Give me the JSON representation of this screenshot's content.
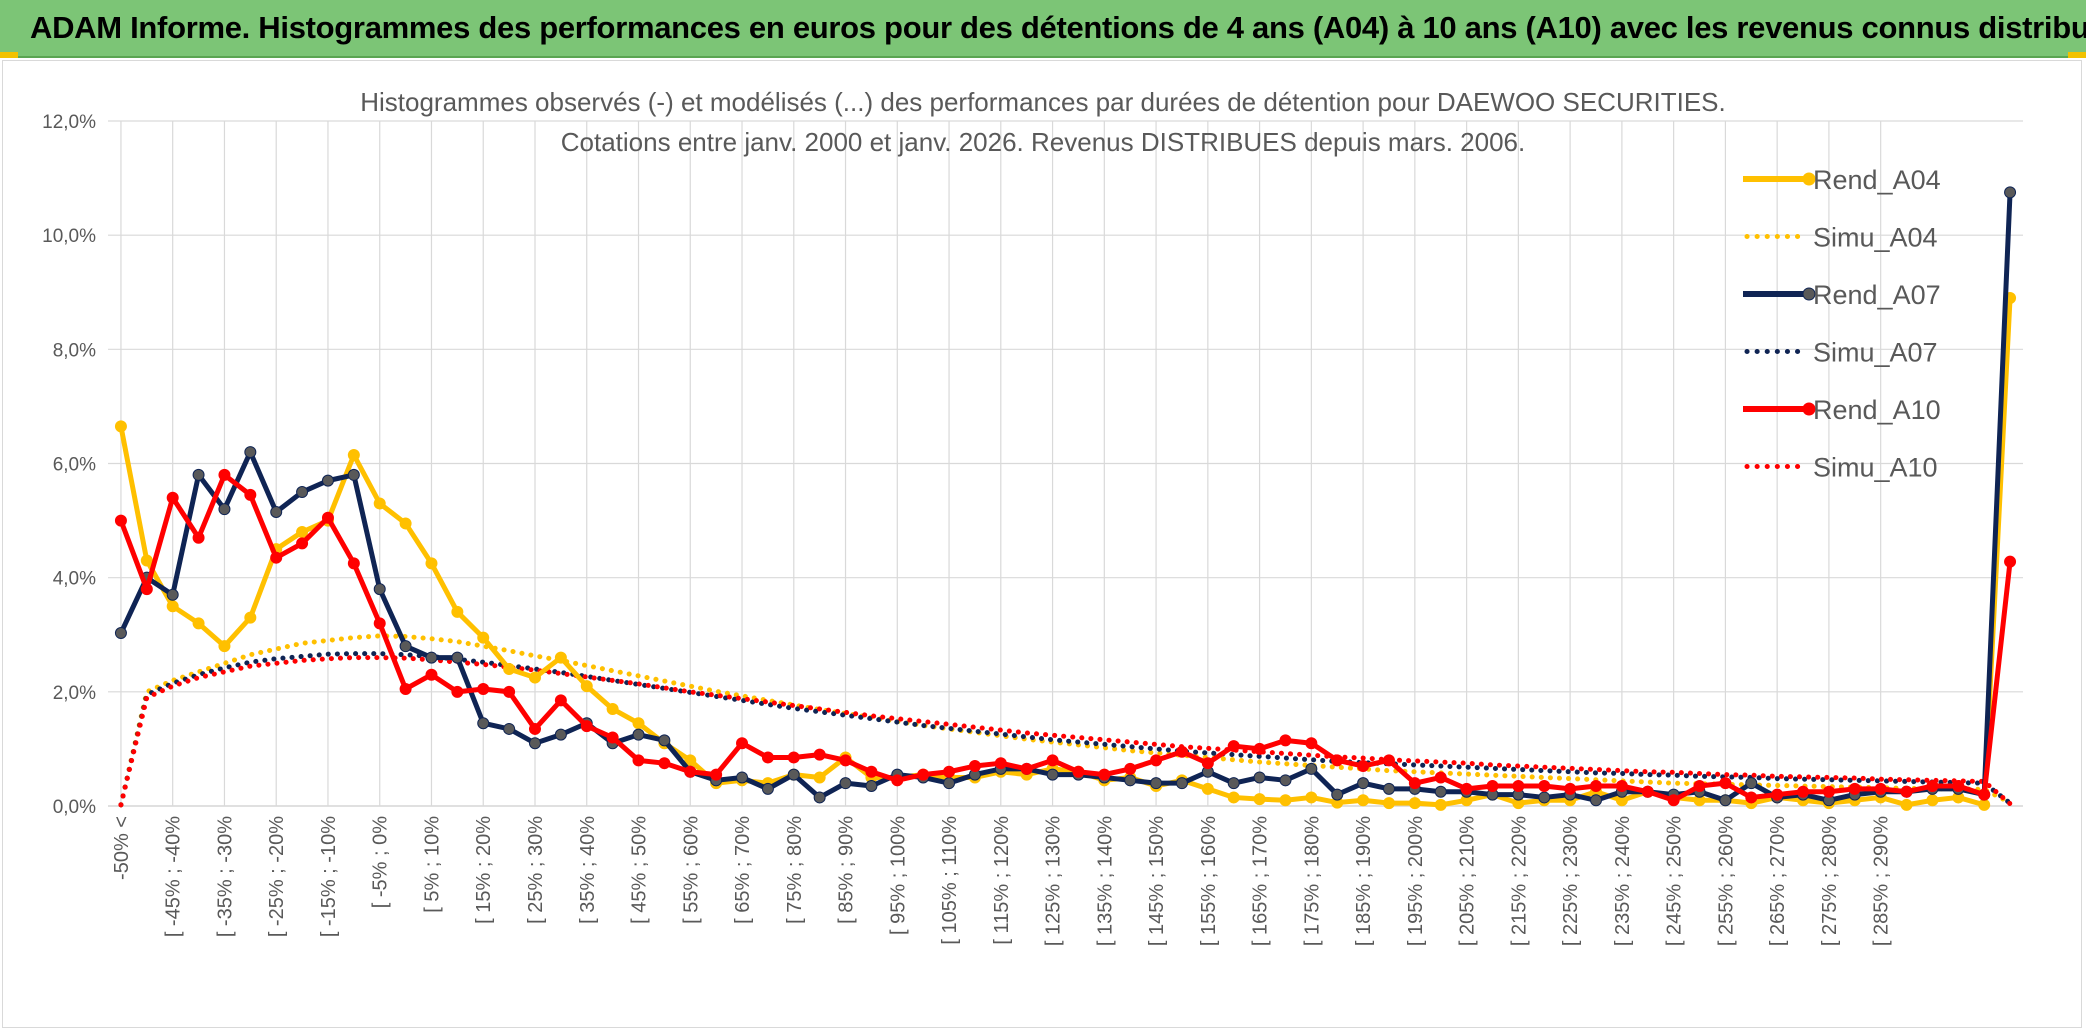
{
  "banner": {
    "title": "ADAM Informe. Histogrammes des performances en euros pour des détentions de 4 ans (A04) à 10 ans (A10) avec les revenus connus distribués"
  },
  "chart_data": {
    "type": "line",
    "title": [
      "Histogrammes observés (-) et modélisés (...) des performances par durées de détention pour DAEWOO SECURITIES.",
      "Cotations entre janv. 2000 et janv. 2026. Revenus DISTRIBUES depuis mars. 2006."
    ],
    "xlabel": "",
    "ylabel": "",
    "ylim": [
      0,
      12
    ],
    "yticks": [
      "0,0%",
      "2,0%",
      "4,0%",
      "6,0%",
      "8,0%",
      "10,0%",
      "12,0%"
    ],
    "grid": true,
    "legend_position": "right",
    "x_labels_shown": [
      "-50% <",
      "[ -45% ; -40%",
      "[ -35% ; -30%",
      "[ -25% ; -20%",
      "[ -15% ; -10%",
      "[ -5% ; 0%",
      "[ 5% ; 10%",
      "[ 15% ; 20%",
      "[ 25% ; 30%",
      "[ 35% ; 40%",
      "[ 45% ; 50%",
      "[ 55% ; 60%",
      "[ 65% ; 70%",
      "[ 75% ; 80%",
      "[ 85% ; 90%",
      "[ 95% ; 100%",
      "[ 105% ; 110%",
      "[ 115% ; 120%",
      "[ 125% ; 130%",
      "[ 135% ; 140%",
      "[ 145% ; 150%",
      "[ 155% ; 160%",
      "[ 165% ; 170%",
      "[ 175% ; 180%",
      "[ 185% ; 190%",
      "[ 195% ; 200%",
      "[ 205% ; 210%",
      "[ 215% ; 220%",
      "[ 225% ; 230%",
      "[ 235% ; 240%",
      "[ 245% ; 250%",
      "[ 255% ; 260%",
      "[ 265% ; 270%",
      "[ 275% ; 280%",
      "[ 285% ; 290%"
    ],
    "series": [
      {
        "name": "Rend_A04",
        "color": "#FFC000",
        "style": "solid",
        "values": [
          6.65,
          4.3,
          3.5,
          3.2,
          2.8,
          3.3,
          4.5,
          4.8,
          5.0,
          6.15,
          5.3,
          4.95,
          4.25,
          3.4,
          2.95,
          2.4,
          2.25,
          2.6,
          2.1,
          1.7,
          1.45,
          1.1,
          0.8,
          0.4,
          0.45,
          0.4,
          0.55,
          0.5,
          0.85,
          0.5,
          0.5,
          0.55,
          0.5,
          0.5,
          0.6,
          0.55,
          0.65,
          0.6,
          0.45,
          0.5,
          0.35,
          0.45,
          0.3,
          0.15,
          0.12,
          0.1,
          0.15,
          0.06,
          0.1,
          0.05,
          0.05,
          0.02,
          0.1,
          0.2,
          0.05,
          0.1,
          0.1,
          0.25,
          0.1,
          0.25,
          0.15,
          0.1,
          0.1,
          0.05,
          0.15,
          0.1,
          0.05,
          0.1,
          0.15,
          0.02,
          0.1,
          0.15,
          0.02,
          8.9
        ]
      },
      {
        "name": "Simu_A04",
        "color": "#FFC000",
        "style": "dotted",
        "values": [
          0.02,
          2.0,
          2.2,
          2.35,
          2.5,
          2.65,
          2.75,
          2.85,
          2.9,
          2.95,
          2.98,
          2.97,
          2.93,
          2.88,
          2.8,
          2.72,
          2.63,
          2.55,
          2.46,
          2.37,
          2.28,
          2.19,
          2.1,
          2.01,
          1.93,
          1.85,
          1.77,
          1.69,
          1.62,
          1.55,
          1.48,
          1.41,
          1.35,
          1.29,
          1.23,
          1.17,
          1.12,
          1.07,
          1.02,
          0.97,
          0.93,
          0.89,
          0.85,
          0.81,
          0.77,
          0.74,
          0.71,
          0.68,
          0.65,
          0.62,
          0.6,
          0.58,
          0.56,
          0.54,
          0.52,
          0.5,
          0.48,
          0.46,
          0.44,
          0.42,
          0.4,
          0.39,
          0.38,
          0.37,
          0.36,
          0.35,
          0.34,
          0.33,
          0.32,
          0.31,
          0.3,
          0.3,
          0.29,
          0.06
        ]
      },
      {
        "name": "Rend_A07",
        "color": "#0F2454",
        "style": "solid",
        "values": [
          3.03,
          4.0,
          3.7,
          5.8,
          5.2,
          6.2,
          5.15,
          5.5,
          5.7,
          5.8,
          3.8,
          2.8,
          2.6,
          2.6,
          1.45,
          1.35,
          1.1,
          1.25,
          1.45,
          1.1,
          1.25,
          1.15,
          0.6,
          0.45,
          0.5,
          0.3,
          0.55,
          0.15,
          0.4,
          0.35,
          0.55,
          0.5,
          0.4,
          0.55,
          0.65,
          0.65,
          0.55,
          0.55,
          0.5,
          0.45,
          0.4,
          0.4,
          0.6,
          0.4,
          0.5,
          0.45,
          0.65,
          0.2,
          0.4,
          0.3,
          0.3,
          0.25,
          0.25,
          0.2,
          0.2,
          0.15,
          0.2,
          0.1,
          0.25,
          0.25,
          0.2,
          0.25,
          0.1,
          0.4,
          0.15,
          0.2,
          0.1,
          0.2,
          0.25,
          0.25,
          0.3,
          0.3,
          0.2,
          10.75
        ]
      },
      {
        "name": "Simu_A07",
        "color": "#0F2454",
        "style": "dotted",
        "values": [
          0.02,
          1.95,
          2.15,
          2.3,
          2.42,
          2.52,
          2.58,
          2.62,
          2.66,
          2.67,
          2.67,
          2.65,
          2.62,
          2.57,
          2.52,
          2.46,
          2.4,
          2.34,
          2.27,
          2.2,
          2.13,
          2.06,
          1.99,
          1.92,
          1.85,
          1.78,
          1.71,
          1.65,
          1.59,
          1.53,
          1.47,
          1.41,
          1.36,
          1.31,
          1.26,
          1.21,
          1.16,
          1.12,
          1.08,
          1.04,
          1.0,
          0.96,
          0.93,
          0.9,
          0.87,
          0.84,
          0.81,
          0.78,
          0.76,
          0.74,
          0.72,
          0.7,
          0.68,
          0.66,
          0.64,
          0.62,
          0.6,
          0.58,
          0.57,
          0.55,
          0.54,
          0.52,
          0.51,
          0.5,
          0.48,
          0.47,
          0.46,
          0.45,
          0.44,
          0.43,
          0.42,
          0.41,
          0.4,
          0.05
        ]
      },
      {
        "name": "Rend_A10",
        "color": "#FF0000",
        "style": "solid",
        "values": [
          5.0,
          3.8,
          5.4,
          4.7,
          5.8,
          5.45,
          4.35,
          4.6,
          5.05,
          4.25,
          3.2,
          2.05,
          2.3,
          2.0,
          2.05,
          2.0,
          1.35,
          1.85,
          1.4,
          1.2,
          0.8,
          0.75,
          0.6,
          0.55,
          1.1,
          0.85,
          0.85,
          0.9,
          0.8,
          0.6,
          0.45,
          0.55,
          0.6,
          0.7,
          0.75,
          0.65,
          0.8,
          0.6,
          0.55,
          0.65,
          0.8,
          0.95,
          0.75,
          1.05,
          1.0,
          1.15,
          1.1,
          0.8,
          0.7,
          0.8,
          0.4,
          0.5,
          0.3,
          0.35,
          0.35,
          0.35,
          0.3,
          0.35,
          0.35,
          0.25,
          0.1,
          0.35,
          0.4,
          0.15,
          0.2,
          0.25,
          0.25,
          0.3,
          0.3,
          0.25,
          0.35,
          0.35,
          0.2,
          4.28
        ]
      },
      {
        "name": "Simu_A10",
        "color": "#FF0000",
        "style": "dotted",
        "values": [
          0.02,
          1.9,
          2.1,
          2.25,
          2.35,
          2.45,
          2.5,
          2.55,
          2.58,
          2.6,
          2.6,
          2.59,
          2.56,
          2.52,
          2.48,
          2.43,
          2.38,
          2.32,
          2.26,
          2.2,
          2.14,
          2.07,
          2.0,
          1.94,
          1.88,
          1.82,
          1.76,
          1.7,
          1.64,
          1.58,
          1.53,
          1.48,
          1.43,
          1.38,
          1.33,
          1.28,
          1.24,
          1.2,
          1.16,
          1.12,
          1.08,
          1.04,
          1.01,
          0.98,
          0.95,
          0.92,
          0.89,
          0.86,
          0.84,
          0.81,
          0.79,
          0.77,
          0.75,
          0.72,
          0.7,
          0.68,
          0.66,
          0.64,
          0.62,
          0.6,
          0.59,
          0.57,
          0.55,
          0.54,
          0.52,
          0.51,
          0.5,
          0.49,
          0.47,
          0.46,
          0.45,
          0.44,
          0.43,
          0.04
        ]
      }
    ]
  }
}
